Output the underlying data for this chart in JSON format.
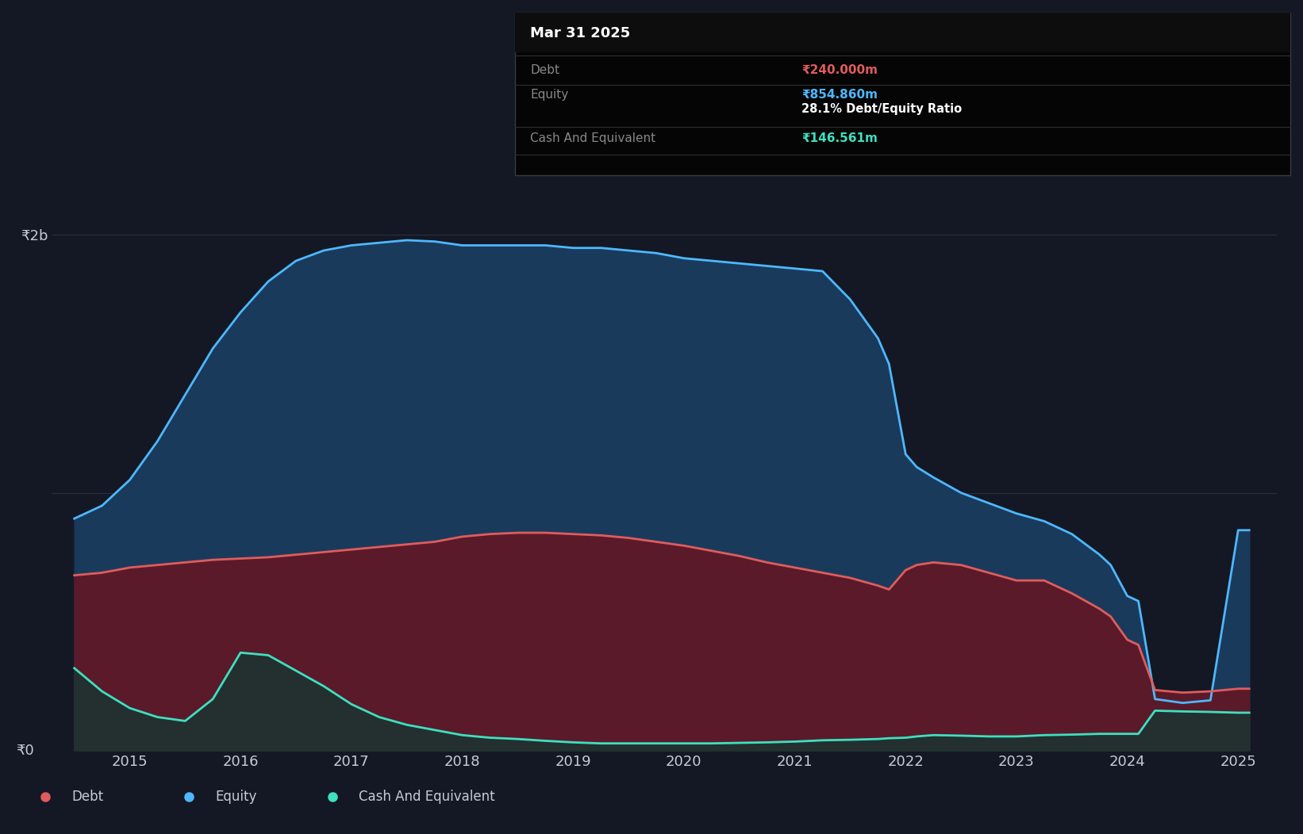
{
  "bg_color": "#141824",
  "plot_bg_color": "#141824",
  "grid_color": "#2a2e3d",
  "text_color": "#c8cbd4",
  "ylabel_2b": "₹2b",
  "ylabel_0": "₹0",
  "x_ticks": [
    2015,
    2016,
    2017,
    2018,
    2019,
    2020,
    2021,
    2022,
    2023,
    2024,
    2025
  ],
  "legend_items": [
    "Debt",
    "Equity",
    "Cash And Equivalent"
  ],
  "legend_colors": [
    "#e05c5c",
    "#4db8ff",
    "#3de0c0"
  ],
  "tooltip_title": "Mar 31 2025",
  "tooltip_debt": "₹240.000m",
  "tooltip_equity": "₹854.860m",
  "tooltip_ratio": "28.1% Debt/Equity Ratio",
  "tooltip_cash": "₹146.561m",
  "debt_line_color": "#e05c5c",
  "equity_line_color": "#4db8ff",
  "cash_line_color": "#3de0c0",
  "equity_fill_color": "#1a3a5c",
  "debt_fill_color": "#5a1a2a",
  "cash_fill_color": "#1a3530",
  "years": [
    2014.5,
    2014.75,
    2015.0,
    2015.25,
    2015.5,
    2015.75,
    2016.0,
    2016.25,
    2016.5,
    2016.75,
    2017.0,
    2017.25,
    2017.5,
    2017.75,
    2018.0,
    2018.25,
    2018.5,
    2018.75,
    2019.0,
    2019.25,
    2019.5,
    2019.75,
    2020.0,
    2020.25,
    2020.5,
    2020.75,
    2021.0,
    2021.25,
    2021.5,
    2021.75,
    2021.85,
    2022.0,
    2022.1,
    2022.25,
    2022.5,
    2022.75,
    2023.0,
    2023.25,
    2023.5,
    2023.75,
    2023.85,
    2024.0,
    2024.1,
    2024.25,
    2024.5,
    2024.75,
    2025.0,
    2025.1
  ],
  "equity": [
    900,
    950,
    1050,
    1200,
    1380,
    1560,
    1700,
    1820,
    1900,
    1940,
    1960,
    1970,
    1980,
    1975,
    1960,
    1960,
    1960,
    1960,
    1950,
    1950,
    1940,
    1930,
    1910,
    1900,
    1890,
    1880,
    1870,
    1860,
    1750,
    1600,
    1500,
    1150,
    1100,
    1060,
    1000,
    960,
    920,
    890,
    840,
    760,
    720,
    600,
    580,
    200,
    185,
    195,
    855,
    855
  ],
  "debt": [
    680,
    690,
    710,
    720,
    730,
    740,
    745,
    750,
    760,
    770,
    780,
    790,
    800,
    810,
    830,
    840,
    845,
    845,
    840,
    835,
    825,
    810,
    795,
    775,
    755,
    730,
    710,
    690,
    670,
    640,
    625,
    700,
    720,
    730,
    720,
    690,
    660,
    660,
    610,
    550,
    520,
    430,
    410,
    235,
    225,
    230,
    240,
    240
  ],
  "cash": [
    320,
    230,
    165,
    130,
    115,
    200,
    380,
    370,
    310,
    250,
    180,
    130,
    100,
    80,
    60,
    50,
    45,
    38,
    32,
    28,
    28,
    28,
    28,
    28,
    30,
    32,
    35,
    40,
    42,
    45,
    48,
    50,
    55,
    60,
    58,
    55,
    55,
    60,
    62,
    65,
    65,
    65,
    65,
    155,
    152,
    150,
    147,
    147
  ],
  "ylim": [
    0,
    2200
  ],
  "xlim": [
    2014.3,
    2025.35
  ],
  "y2b_val": 2000,
  "y1b_val": 1000
}
